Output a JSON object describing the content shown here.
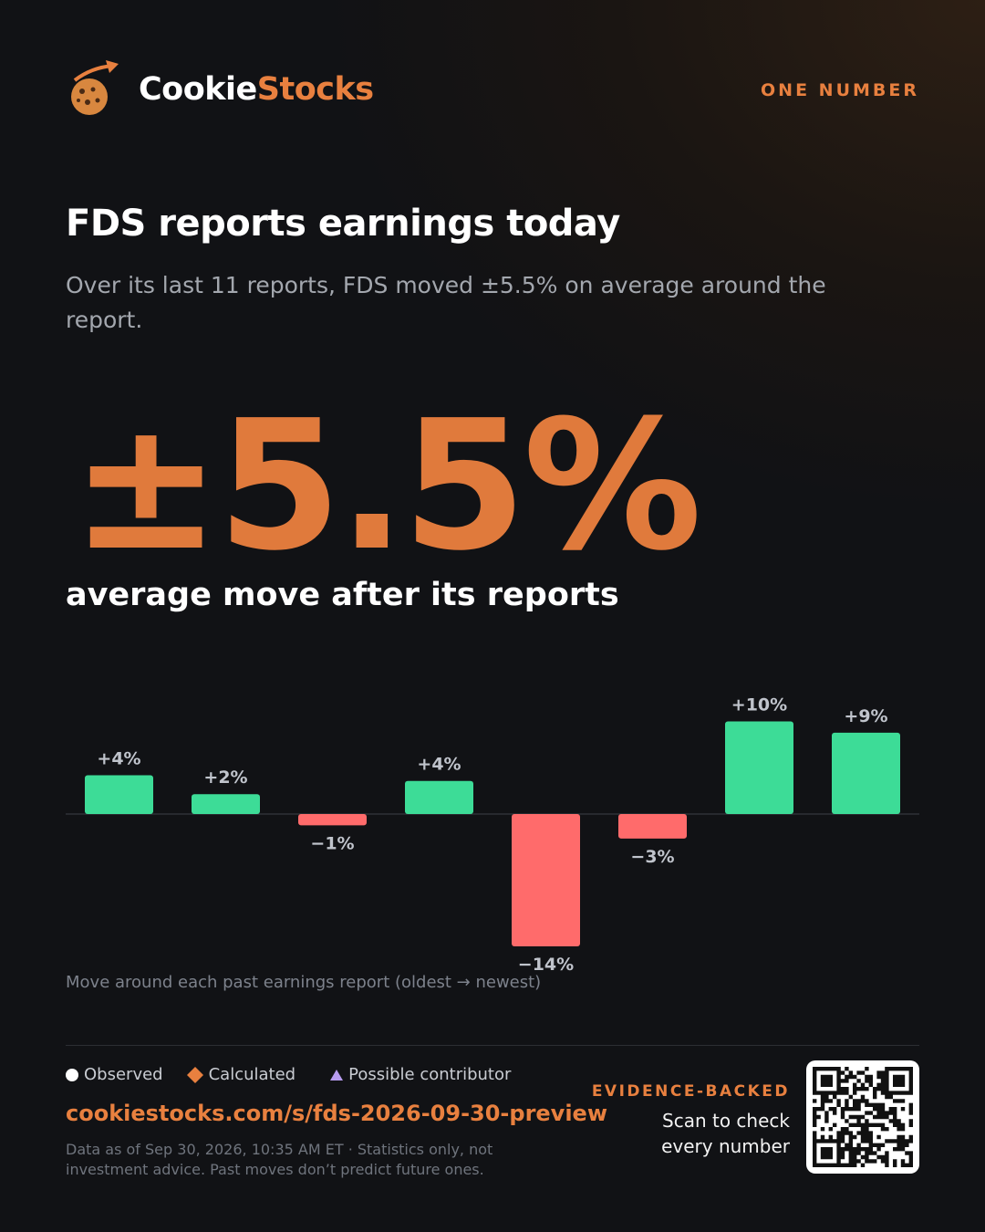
{
  "header": {
    "brand_first": "Cookie",
    "brand_second": "Stocks",
    "tag": "ONE NUMBER"
  },
  "headline": {
    "title": "FDS reports earnings today",
    "subtitle": "Over its last 11 reports, FDS moved ±5.5% on average around the report.",
    "big_number": "±5.5%",
    "big_number_caption": "average move after its reports"
  },
  "chart_data": {
    "type": "bar",
    "values": [
      4.1,
      2.1,
      -1.2,
      3.5,
      -14,
      -2.6,
      9.8,
      8.6
    ],
    "value_labels": [
      "+4%",
      "+2%",
      "−1%",
      "+4%",
      "−14%",
      "−3%",
      "+10%",
      "+9%"
    ],
    "positive_color": "#3ddc97",
    "negative_color": "#ff6b6b",
    "caption": "Move around each past earnings report (oldest → newest)"
  },
  "footer": {
    "legend": [
      "Observed",
      "Calculated",
      "Possible contributor"
    ],
    "url": "cookiestocks.com/s/fds-2026-09-30-preview",
    "disclaimer": "Data as of Sep 30, 2026, 10:35 AM ET · Statistics only, not investment advice. Past moves don’t predict future ones.",
    "badge": "EVIDENCE-BACKED",
    "scan_text": "Scan to check every number"
  }
}
